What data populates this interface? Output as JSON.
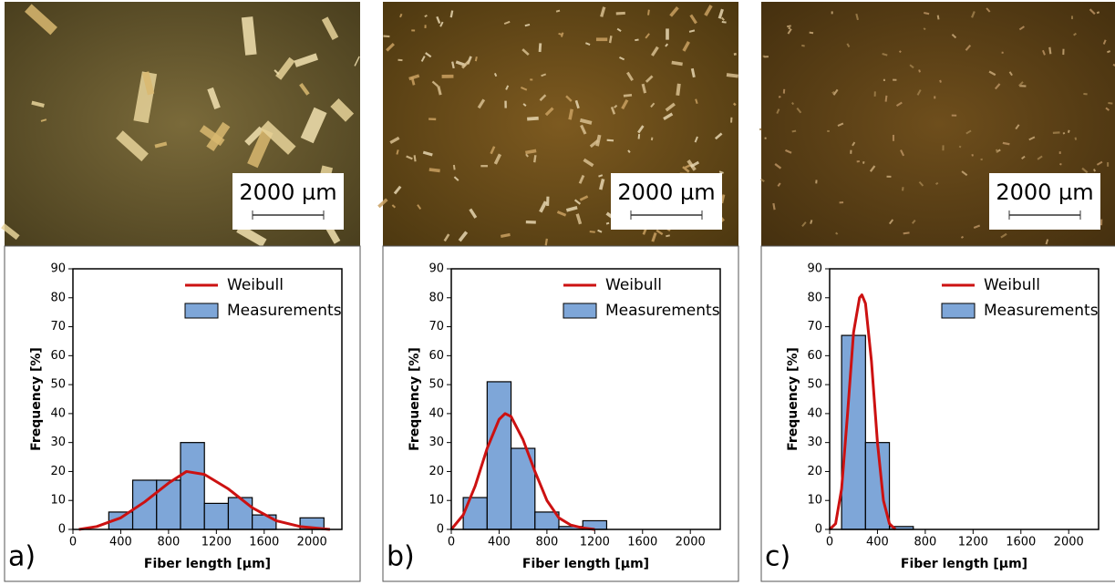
{
  "chart_data": [
    {
      "type": "histogram",
      "panel_label": "a)",
      "scale_bar": "2000 µm",
      "xlabel": "Fiber length [µm]",
      "ylabel": "Frequency [%]",
      "xlim": [
        0,
        2250
      ],
      "ylim": [
        0,
        90
      ],
      "xticks": [
        0,
        400,
        800,
        1200,
        1600,
        2000
      ],
      "yticks": [
        0,
        10,
        20,
        30,
        40,
        50,
        60,
        70,
        80,
        90
      ],
      "bins": [
        300,
        500,
        700,
        900,
        1100,
        1300,
        1500,
        1700,
        1900,
        2100
      ],
      "series": [
        {
          "name": "Weibull",
          "type": "line",
          "color": "#cc1111",
          "x": [
            50,
            200,
            400,
            600,
            800,
            950,
            1100,
            1300,
            1500,
            1700,
            1900,
            2100,
            2150
          ],
          "values": [
            0,
            1,
            4,
            9.5,
            16,
            20,
            19,
            14,
            7.5,
            3,
            1,
            0.2,
            0
          ]
        },
        {
          "name": "Measurements",
          "type": "histogram",
          "color": "#7ea6d8",
          "values": [
            6,
            17,
            17,
            30,
            9,
            11,
            5,
            0,
            4
          ]
        }
      ]
    },
    {
      "type": "histogram",
      "panel_label": "b)",
      "scale_bar": "2000 µm",
      "xlabel": "Fiber length [µm]",
      "ylabel": "Frequency [%]",
      "xlim": [
        0,
        2250
      ],
      "ylim": [
        0,
        90
      ],
      "xticks": [
        0,
        400,
        800,
        1200,
        1600,
        2000
      ],
      "yticks": [
        0,
        10,
        20,
        30,
        40,
        50,
        60,
        70,
        80,
        90
      ],
      "bins": [
        100,
        300,
        500,
        700,
        900,
        1100,
        1300
      ],
      "series": [
        {
          "name": "Weibull",
          "type": "line",
          "color": "#cc1111",
          "x": [
            0,
            100,
            200,
            300,
            400,
            450,
            500,
            600,
            700,
            800,
            900,
            1000,
            1100,
            1200
          ],
          "values": [
            0,
            5,
            15,
            28,
            38,
            40,
            39,
            31,
            20,
            10,
            4,
            1.5,
            0.5,
            0
          ]
        },
        {
          "name": "Measurements",
          "type": "histogram",
          "color": "#7ea6d8",
          "values": [
            11,
            51,
            28,
            6,
            1,
            3
          ]
        }
      ]
    },
    {
      "type": "histogram",
      "panel_label": "c)",
      "scale_bar": "2000 µm",
      "xlabel": "Fiber length [µm]",
      "ylabel": "Frequency [%]",
      "xlim": [
        0,
        2250
      ],
      "ylim": [
        0,
        90
      ],
      "xticks": [
        0,
        400,
        800,
        1200,
        1600,
        2000
      ],
      "yticks": [
        0,
        10,
        20,
        30,
        40,
        50,
        60,
        70,
        80,
        90
      ],
      "bins": [
        100,
        300,
        500,
        700
      ],
      "series": [
        {
          "name": "Weibull",
          "type": "line",
          "color": "#cc1111",
          "x": [
            0,
            50,
            100,
            150,
            200,
            250,
            270,
            300,
            350,
            400,
            450,
            500,
            550
          ],
          "values": [
            0,
            2,
            14,
            40,
            68,
            80,
            81,
            78,
            58,
            30,
            10,
            2,
            0
          ]
        },
        {
          "name": "Measurements",
          "type": "histogram",
          "color": "#7ea6d8",
          "values": [
            67,
            30,
            1
          ]
        }
      ]
    }
  ]
}
